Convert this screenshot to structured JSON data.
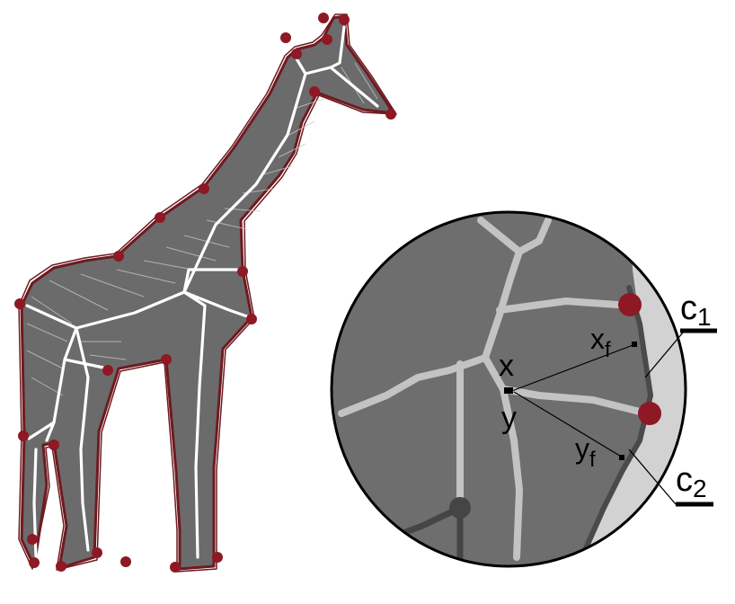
{
  "colors": {
    "outline": "#6e1a20",
    "vertex": "#8e1824",
    "body": "#6b6b6b",
    "shading": "#c9c9c9",
    "skeleton": "#ffffff",
    "zoom_inner": "#6e6e6e",
    "zoom_outer": "#d2d2d2",
    "zoom_skeleton": "#c3c3c3",
    "zoom_contour": "#4a4a4a",
    "zoom_node": "#454545"
  },
  "labels": {
    "x": "x",
    "y": "y",
    "xf_base": "x",
    "xf_sub": "f",
    "yf_base": "y",
    "yf_sub": "f",
    "c1_base": "c",
    "c1_sub": "1",
    "c2_base": "c",
    "c2_sub": "2"
  }
}
